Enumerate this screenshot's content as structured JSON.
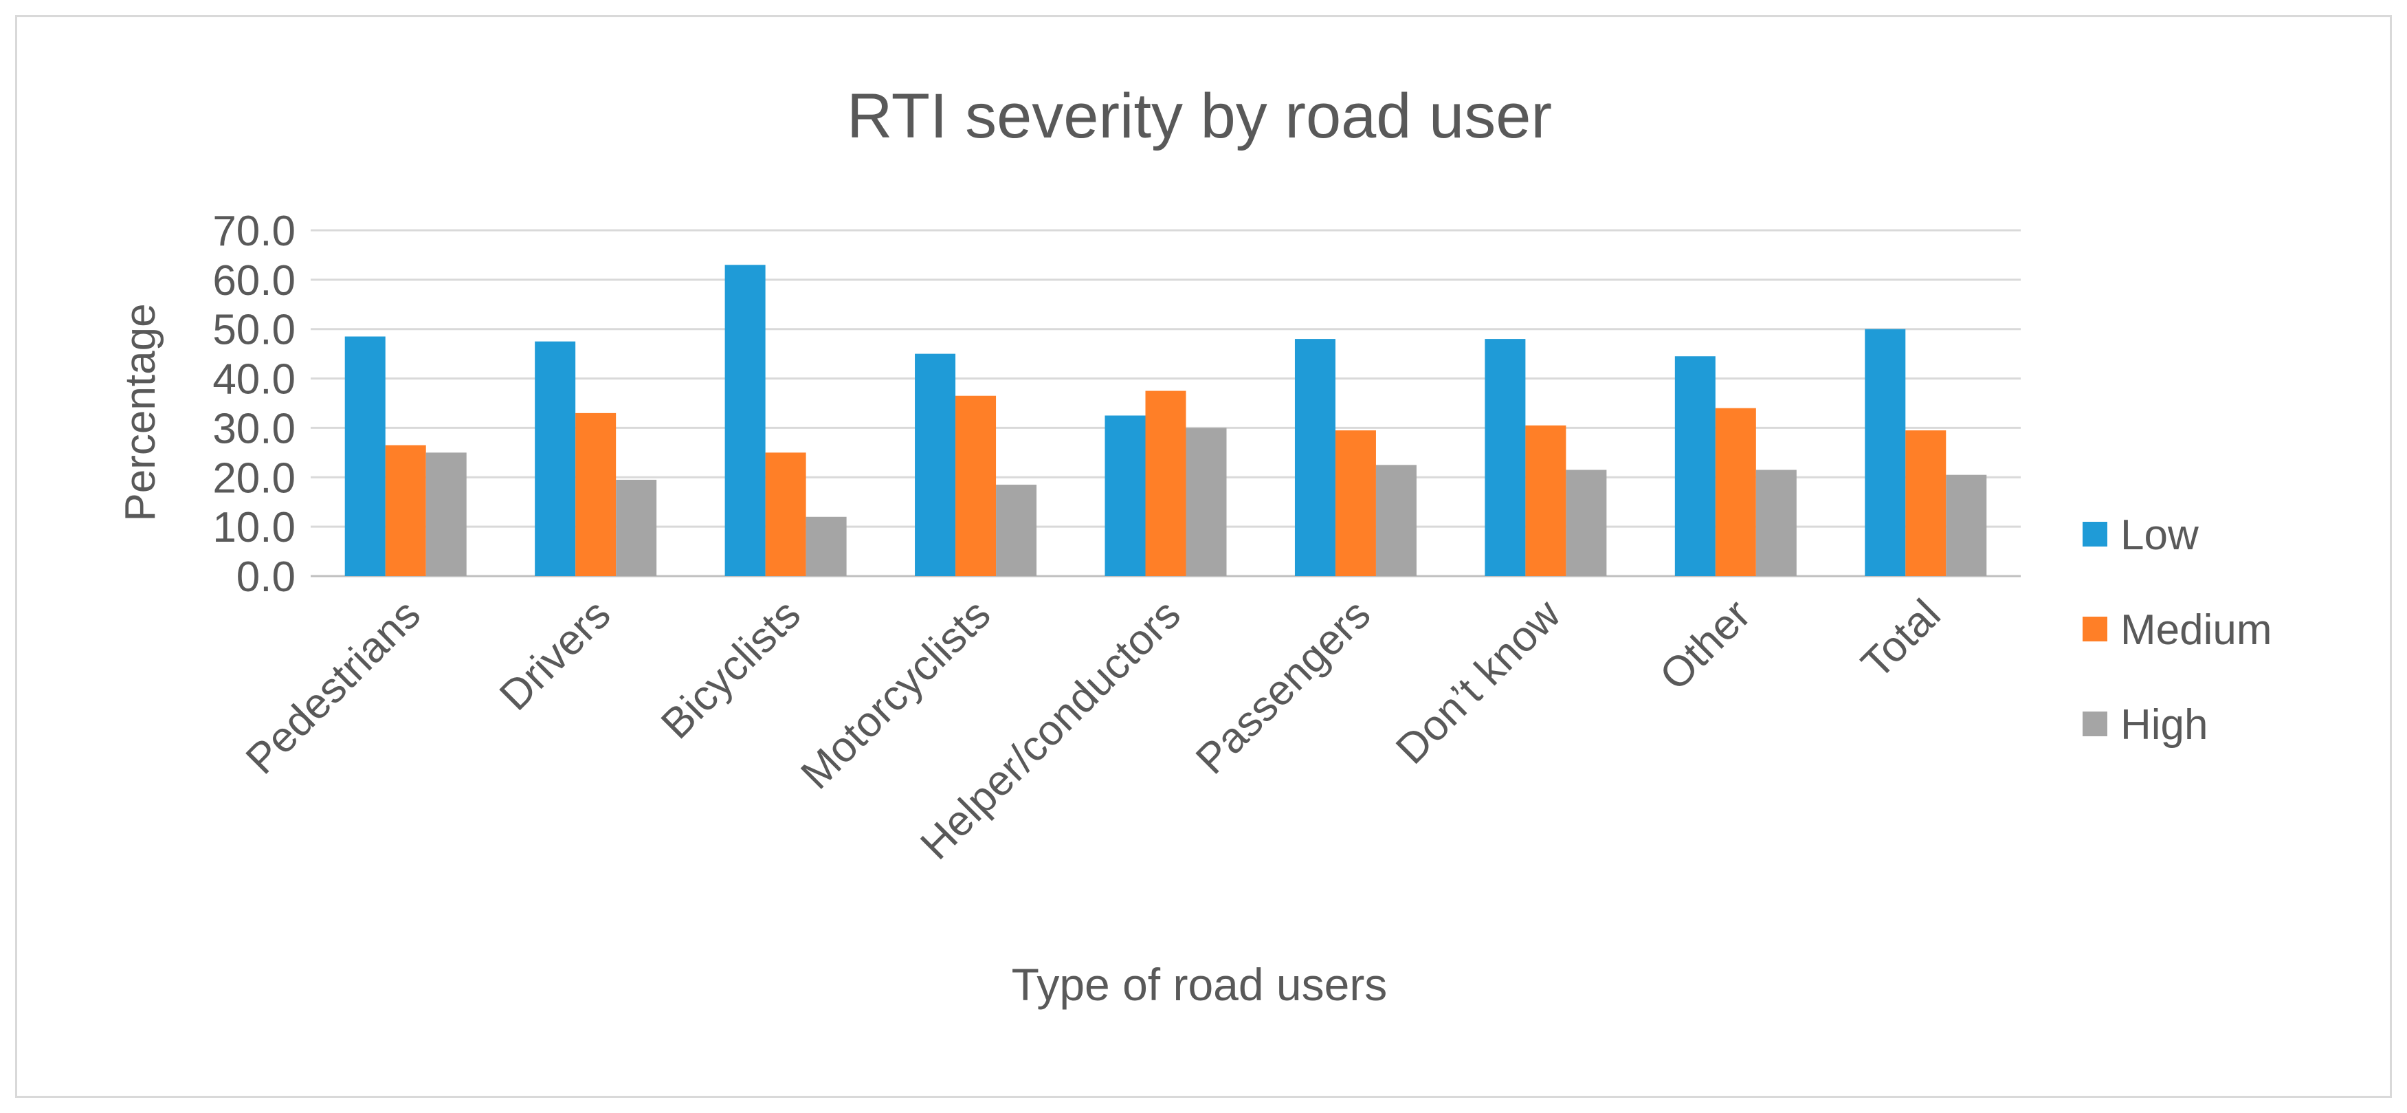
{
  "chart_data": {
    "type": "bar",
    "title": "RTI severity by road user",
    "xlabel": "Type of road users",
    "ylabel": "Percentage",
    "categories": [
      "Pedestrians",
      "Drivers",
      "Bicyclists",
      "Motorcyclists",
      "Helper/conductors",
      "Passengers",
      "Don’t know",
      "Other",
      "Total"
    ],
    "series": [
      {
        "name": "Low",
        "color": "#1f9bd7",
        "values": [
          48.5,
          47.5,
          63.0,
          45.0,
          32.5,
          48.0,
          48.0,
          44.5,
          50.0
        ]
      },
      {
        "name": "Medium",
        "color": "#ff7f27",
        "values": [
          26.5,
          33.0,
          25.0,
          36.5,
          37.5,
          29.5,
          30.5,
          34.0,
          29.5
        ]
      },
      {
        "name": "High",
        "color": "#a5a5a5",
        "values": [
          25.0,
          19.5,
          12.0,
          18.5,
          30.0,
          22.5,
          21.5,
          21.5,
          20.5
        ]
      }
    ],
    "yticks": [
      "0.0",
      "10.0",
      "20.0",
      "30.0",
      "40.0",
      "50.0",
      "60.0",
      "70.0"
    ],
    "ylim": [
      0,
      70
    ],
    "grid": true,
    "legend_position": "right"
  }
}
